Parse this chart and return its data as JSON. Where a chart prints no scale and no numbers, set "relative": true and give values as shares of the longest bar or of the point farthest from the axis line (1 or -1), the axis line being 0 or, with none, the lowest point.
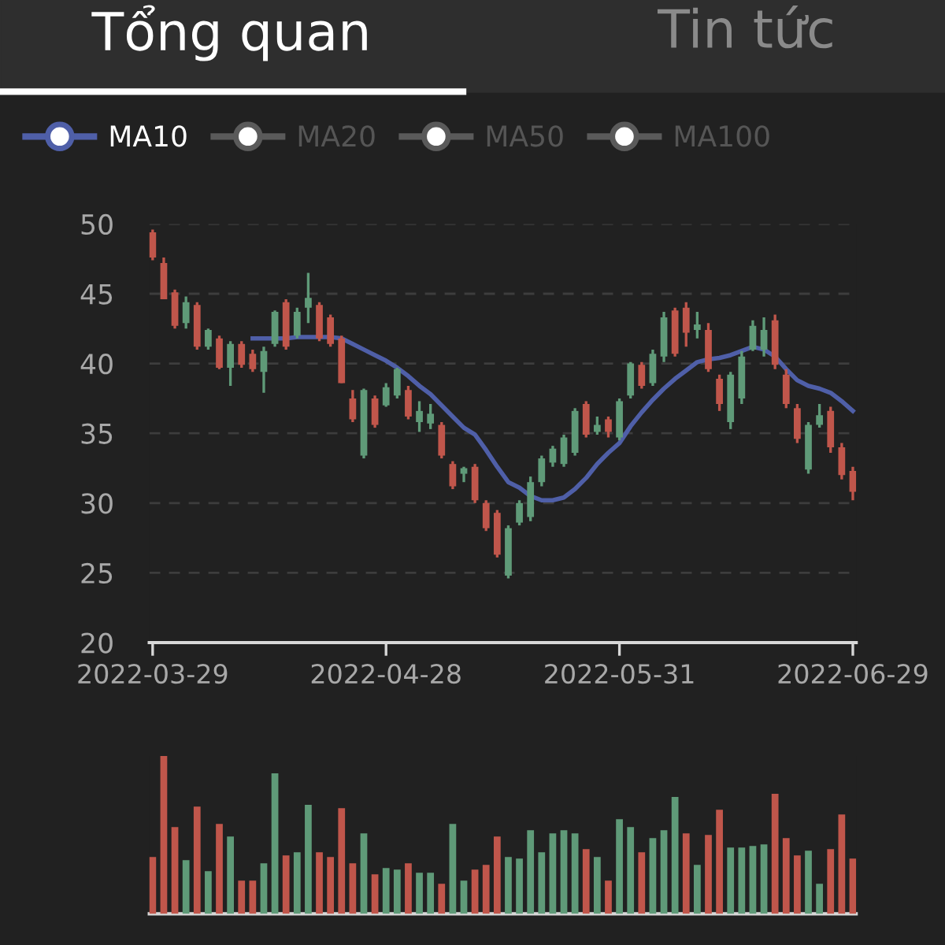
{
  "chart_data": [
    {
      "type": "candlestick",
      "annotations": [
        "Tổng quan",
        "Tin tức"
      ],
      "categories": [
        "2022-03-29",
        null,
        null,
        null,
        null,
        null,
        null,
        null,
        null,
        null,
        null,
        null,
        null,
        null,
        null,
        null,
        null,
        null,
        null,
        null,
        null,
        "2022-04-28",
        null,
        null,
        null,
        null,
        null,
        null,
        null,
        null,
        null,
        null,
        null,
        null,
        null,
        null,
        null,
        null,
        null,
        null,
        null,
        null,
        "2022-05-31",
        null,
        null,
        null,
        null,
        null,
        null,
        null,
        null,
        null,
        null,
        null,
        null,
        null,
        null,
        null,
        null,
        null,
        null,
        null,
        null,
        "2022-06-29"
      ],
      "ohlc": [
        [
          49.4,
          49.6,
          47.4,
          47.6
        ],
        [
          47.2,
          47.6,
          44.6,
          44.6
        ],
        [
          45.1,
          45.3,
          42.5,
          42.7
        ],
        [
          42.9,
          44.8,
          42.5,
          44.4
        ],
        [
          44.2,
          44.4,
          41.0,
          41.2
        ],
        [
          41.2,
          42.5,
          41.0,
          42.4
        ],
        [
          41.8,
          42.0,
          39.6,
          39.7
        ],
        [
          39.7,
          41.6,
          38.4,
          41.4
        ],
        [
          41.4,
          41.6,
          39.7,
          39.9
        ],
        [
          40.7,
          41.0,
          39.4,
          39.6
        ],
        [
          39.4,
          41.2,
          37.9,
          40.9
        ],
        [
          41.4,
          43.8,
          41.2,
          43.7
        ],
        [
          44.4,
          44.6,
          41.0,
          41.2
        ],
        [
          42.0,
          44.0,
          41.8,
          43.7
        ],
        [
          44.0,
          46.5,
          42.9,
          44.7
        ],
        [
          44.2,
          44.4,
          41.6,
          41.8
        ],
        [
          43.3,
          43.5,
          41.2,
          41.4
        ],
        [
          41.8,
          42.0,
          38.6,
          38.6
        ],
        [
          37.5,
          38.1,
          35.8,
          36.0
        ],
        [
          33.4,
          38.2,
          33.2,
          38.1
        ],
        [
          37.5,
          37.7,
          35.4,
          35.6
        ],
        [
          37.0,
          38.6,
          36.9,
          38.3
        ],
        [
          37.7,
          39.7,
          37.5,
          39.6
        ],
        [
          38.1,
          38.4,
          36.0,
          36.2
        ],
        [
          35.8,
          37.3,
          35.1,
          36.6
        ],
        [
          35.7,
          37.1,
          35.3,
          36.4
        ],
        [
          35.6,
          35.8,
          33.2,
          33.4
        ],
        [
          32.8,
          33.0,
          31.0,
          31.2
        ],
        [
          32.1,
          32.6,
          31.5,
          32.5
        ],
        [
          32.6,
          32.8,
          30.0,
          30.2
        ],
        [
          30.0,
          30.2,
          28.0,
          28.2
        ],
        [
          29.3,
          29.5,
          26.1,
          26.3
        ],
        [
          24.8,
          28.4,
          24.6,
          28.2
        ],
        [
          28.6,
          30.2,
          28.4,
          30.0
        ],
        [
          29.0,
          31.9,
          28.7,
          31.5
        ],
        [
          31.5,
          33.4,
          31.2,
          33.2
        ],
        [
          32.9,
          34.1,
          32.6,
          33.9
        ],
        [
          32.8,
          34.9,
          32.6,
          34.7
        ],
        [
          33.6,
          36.8,
          33.4,
          36.6
        ],
        [
          37.1,
          37.3,
          34.7,
          34.9
        ],
        [
          35.1,
          36.2,
          34.9,
          35.6
        ],
        [
          36.0,
          36.2,
          34.7,
          35.1
        ],
        [
          34.7,
          37.5,
          34.5,
          37.3
        ],
        [
          37.7,
          40.1,
          37.5,
          40.0
        ],
        [
          39.9,
          40.1,
          38.2,
          38.4
        ],
        [
          38.6,
          41.0,
          38.4,
          40.7
        ],
        [
          40.5,
          43.7,
          40.1,
          43.3
        ],
        [
          43.8,
          44.0,
          40.5,
          40.7
        ],
        [
          44.0,
          44.4,
          41.2,
          42.2
        ],
        [
          42.4,
          43.7,
          41.8,
          42.8
        ],
        [
          42.4,
          42.9,
          39.4,
          39.6
        ],
        [
          38.9,
          39.2,
          36.6,
          37.1
        ],
        [
          35.8,
          39.4,
          35.3,
          39.2
        ],
        [
          37.5,
          40.9,
          37.1,
          40.5
        ],
        [
          41.0,
          43.1,
          40.9,
          42.7
        ],
        [
          41.0,
          43.3,
          40.5,
          42.4
        ],
        [
          43.1,
          43.5,
          39.6,
          39.9
        ],
        [
          39.2,
          39.6,
          36.8,
          37.1
        ],
        [
          36.8,
          37.1,
          34.3,
          34.6
        ],
        [
          32.4,
          35.8,
          32.1,
          35.6
        ],
        [
          35.6,
          37.1,
          35.4,
          36.3
        ],
        [
          36.6,
          36.9,
          33.6,
          34.0
        ],
        [
          34.0,
          34.3,
          31.7,
          32.0
        ],
        [
          32.3,
          32.6,
          30.2,
          30.8
        ]
      ],
      "colors": [
        "#c0564b",
        "#c0564b",
        "#c0564b",
        "#5f9a78",
        "#c0564b",
        "#5f9a78",
        "#c0564b",
        "#5f9a78",
        "#c0564b",
        "#c0564b",
        "#5f9a78",
        "#5f9a78",
        "#c0564b",
        "#5f9a78",
        "#5f9a78",
        "#c0564b",
        "#c0564b",
        "#c0564b",
        "#c0564b",
        "#5f9a78",
        "#c0564b",
        "#5f9a78",
        "#5f9a78",
        "#c0564b",
        "#5f9a78",
        "#5f9a78",
        "#c0564b",
        "#c0564b",
        "#5f9a78",
        "#c0564b",
        "#c0564b",
        "#c0564b",
        "#5f9a78",
        "#5f9a78",
        "#5f9a78",
        "#5f9a78",
        "#5f9a78",
        "#5f9a78",
        "#5f9a78",
        "#c0564b",
        "#5f9a78",
        "#c0564b",
        "#5f9a78",
        "#5f9a78",
        "#c0564b",
        "#5f9a78",
        "#5f9a78",
        "#c0564b",
        "#c0564b",
        "#5f9a78",
        "#c0564b",
        "#c0564b",
        "#5f9a78",
        "#5f9a78",
        "#5f9a78",
        "#5f9a78",
        "#c0564b",
        "#c0564b",
        "#c0564b",
        "#5f9a78",
        "#5f9a78",
        "#c0564b",
        "#c0564b",
        "#c0564b"
      ],
      "series": [
        {
          "name": "MA10",
          "type": "line",
          "color": "#4f5fa8",
          "values": [
            null,
            null,
            null,
            null,
            null,
            null,
            null,
            null,
            null,
            41.8,
            41.8,
            41.8,
            41.8,
            41.9,
            41.9,
            41.9,
            41.9,
            41.8,
            41.4,
            41.0,
            40.6,
            40.2,
            39.7,
            39.1,
            38.4,
            37.8,
            37.0,
            36.2,
            35.4,
            34.9,
            33.8,
            32.6,
            31.5,
            31.1,
            30.5,
            30.2,
            30.2,
            30.4,
            31.0,
            31.8,
            32.8,
            33.6,
            34.3,
            35.5,
            36.5,
            37.4,
            38.2,
            38.9,
            39.5,
            40.1,
            40.3,
            40.4,
            40.6,
            40.9,
            41.2,
            41.0,
            40.5,
            39.6,
            38.8,
            38.4,
            38.2,
            37.9,
            37.3,
            36.6
          ]
        },
        {
          "name": "MA20",
          "type": "line",
          "color": "#5a5a5a",
          "values": [
            null,
            null,
            null,
            null,
            null,
            null,
            null,
            null,
            null,
            null,
            null,
            null,
            null,
            null,
            null,
            null,
            null,
            null,
            null,
            null,
            null,
            null,
            null,
            null,
            null,
            null,
            null,
            null,
            null,
            null,
            null,
            null,
            null,
            null,
            null,
            null,
            null,
            null,
            null,
            null,
            null,
            null,
            null,
            null,
            null,
            null,
            null,
            null,
            null,
            null,
            null,
            null,
            null,
            null,
            null,
            null,
            null,
            null,
            null,
            null,
            null,
            null,
            null,
            null
          ]
        },
        {
          "name": "MA50",
          "type": "line",
          "color": "#5a5a5a",
          "values": [
            null,
            null,
            null,
            null,
            null,
            null,
            null,
            null,
            null,
            null,
            null,
            null,
            null,
            null,
            null,
            null,
            null,
            null,
            null,
            null,
            null,
            null,
            null,
            null,
            null,
            null,
            null,
            null,
            null,
            null,
            null,
            null,
            null,
            null,
            null,
            null,
            null,
            null,
            null,
            null,
            null,
            null,
            null,
            null,
            null,
            null,
            null,
            null,
            null,
            null,
            null,
            null,
            null,
            null,
            null,
            null,
            null,
            null,
            null,
            null,
            null,
            null,
            null,
            null
          ]
        },
        {
          "name": "MA100",
          "type": "line",
          "color": "#5a5a5a",
          "values": [
            null,
            null,
            null,
            null,
            null,
            null,
            null,
            null,
            null,
            null,
            null,
            null,
            null,
            null,
            null,
            null,
            null,
            null,
            null,
            null,
            null,
            null,
            null,
            null,
            null,
            null,
            null,
            null,
            null,
            null,
            null,
            null,
            null,
            null,
            null,
            null,
            null,
            null,
            null,
            null,
            null,
            null,
            null,
            null,
            null,
            null,
            null,
            null,
            null,
            null,
            null,
            null,
            null,
            null,
            null,
            null,
            null,
            null,
            null,
            null,
            null,
            null,
            null,
            null
          ]
        }
      ],
      "ylim": [
        20,
        50
      ],
      "yticks": [
        20,
        25,
        30,
        35,
        40,
        45,
        50
      ],
      "grid": "y",
      "legend": "top left"
    },
    {
      "type": "bar",
      "relative": true,
      "categories": [
        null,
        null,
        null,
        null,
        null,
        null,
        null,
        null,
        null,
        null,
        null,
        null,
        null,
        null,
        null,
        null,
        null,
        null,
        null,
        null,
        null,
        null,
        null,
        null,
        null,
        null,
        null,
        null,
        null,
        null,
        null,
        null,
        null,
        null,
        null,
        null,
        null,
        null,
        null,
        null,
        null,
        null,
        null,
        null,
        null,
        null,
        null,
        null,
        null,
        null,
        null,
        null,
        null,
        null,
        null,
        null,
        null,
        null,
        null,
        null,
        null,
        null,
        null,
        null
      ],
      "values": [
        0.36,
        1.0,
        0.55,
        0.34,
        0.68,
        0.27,
        0.57,
        0.49,
        0.21,
        0.21,
        0.32,
        0.89,
        0.37,
        0.39,
        0.69,
        0.39,
        0.36,
        0.67,
        0.32,
        0.51,
        0.25,
        0.29,
        0.28,
        0.32,
        0.26,
        0.26,
        0.19,
        0.57,
        0.21,
        0.28,
        0.31,
        0.49,
        0.36,
        0.35,
        0.53,
        0.39,
        0.51,
        0.53,
        0.51,
        0.41,
        0.36,
        0.21,
        0.6,
        0.55,
        0.39,
        0.48,
        0.53,
        0.74,
        0.51,
        0.31,
        0.5,
        0.66,
        0.42,
        0.42,
        0.43,
        0.44,
        0.76,
        0.48,
        0.37,
        0.4,
        0.19,
        0.41,
        0.63,
        0.35
      ],
      "colors": [
        "#c0564b",
        "#c0564b",
        "#c0564b",
        "#5f9a78",
        "#c0564b",
        "#5f9a78",
        "#c0564b",
        "#5f9a78",
        "#c0564b",
        "#c0564b",
        "#5f9a78",
        "#5f9a78",
        "#c0564b",
        "#5f9a78",
        "#5f9a78",
        "#c0564b",
        "#c0564b",
        "#c0564b",
        "#c0564b",
        "#5f9a78",
        "#c0564b",
        "#5f9a78",
        "#5f9a78",
        "#c0564b",
        "#5f9a78",
        "#5f9a78",
        "#c0564b",
        "#5f9a78",
        "#5f9a78",
        "#c0564b",
        "#c0564b",
        "#c0564b",
        "#5f9a78",
        "#5f9a78",
        "#5f9a78",
        "#5f9a78",
        "#5f9a78",
        "#5f9a78",
        "#5f9a78",
        "#c0564b",
        "#5f9a78",
        "#c0564b",
        "#5f9a78",
        "#5f9a78",
        "#c0564b",
        "#5f9a78",
        "#5f9a78",
        "#5f9a78",
        "#c0564b",
        "#5f9a78",
        "#c0564b",
        "#c0564b",
        "#5f9a78",
        "#5f9a78",
        "#5f9a78",
        "#5f9a78",
        "#c0564b",
        "#c0564b",
        "#c0564b",
        "#5f9a78",
        "#5f9a78",
        "#c0564b",
        "#c0564b",
        "#c0564b"
      ]
    }
  ]
}
